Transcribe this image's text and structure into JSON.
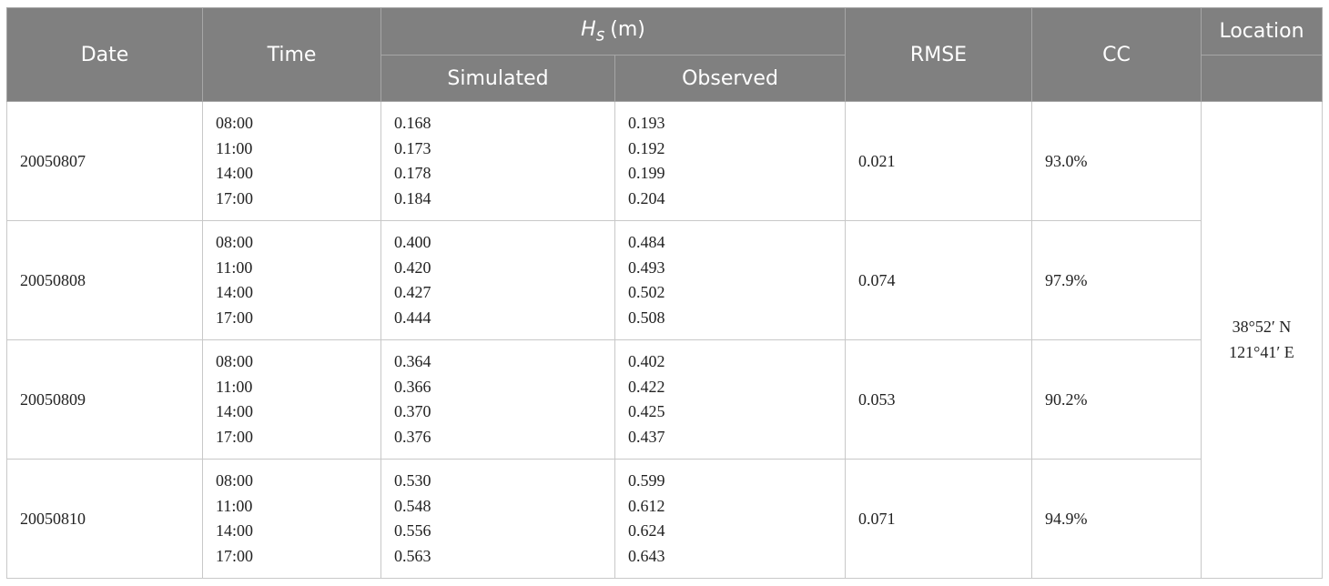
{
  "header": {
    "date": "Date",
    "time": "Time",
    "hs": {
      "symbol": "H",
      "subscript": "s",
      "unit": "(m)"
    },
    "simulated": "Simulated",
    "observed": "Observed",
    "rmse": "RMSE",
    "cc": "CC",
    "location": "Location"
  },
  "rows": [
    {
      "date": "20050807",
      "times": [
        "08:00",
        "11:00",
        "14:00",
        "17:00"
      ],
      "simulated": [
        "0.168",
        "0.173",
        "0.178",
        "0.184"
      ],
      "observed": [
        "0.193",
        "0.192",
        "0.199",
        "0.204"
      ],
      "rmse": "0.021",
      "cc": "93.0%"
    },
    {
      "date": "20050808",
      "times": [
        "08:00",
        "11:00",
        "14:00",
        "17:00"
      ],
      "simulated": [
        "0.400",
        "0.420",
        "0.427",
        "0.444"
      ],
      "observed": [
        "0.484",
        "0.493",
        "0.502",
        "0.508"
      ],
      "rmse": "0.074",
      "cc": "97.9%"
    },
    {
      "date": "20050809",
      "times": [
        "08:00",
        "11:00",
        "14:00",
        "17:00"
      ],
      "simulated": [
        "0.364",
        "0.366",
        "0.370",
        "0.376"
      ],
      "observed": [
        "0.402",
        "0.422",
        "0.425",
        "0.437"
      ],
      "rmse": "0.053",
      "cc": "90.2%"
    },
    {
      "date": "20050810",
      "times": [
        "08:00",
        "11:00",
        "14:00",
        "17:00"
      ],
      "simulated": [
        "0.530",
        "0.548",
        "0.556",
        "0.563"
      ],
      "observed": [
        "0.599",
        "0.612",
        "0.624",
        "0.643"
      ],
      "rmse": "0.071",
      "cc": "94.9%"
    }
  ],
  "location": [
    "38°52′ N",
    "121°41′ E"
  ]
}
